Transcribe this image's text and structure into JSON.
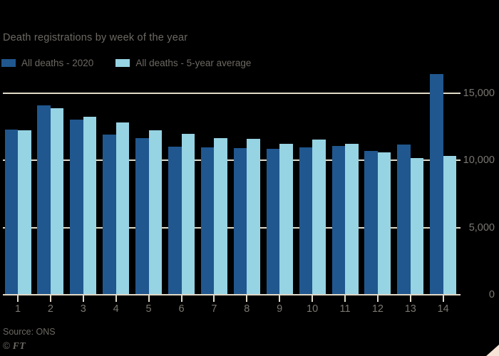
{
  "header": {
    "title": "Death registrations by week of the year"
  },
  "legend": [
    {
      "label": "All deaths - 2020",
      "color": "#20578e"
    },
    {
      "label": "All deaths - 5-year average",
      "color": "#96d3e3"
    }
  ],
  "chart_data": {
    "type": "bar",
    "title": "Death registrations by week of the year",
    "categories": [
      "1",
      "2",
      "3",
      "4",
      "5",
      "6",
      "7",
      "8",
      "9",
      "10",
      "11",
      "12",
      "13",
      "14"
    ],
    "series": [
      {
        "name": "All deaths - 2020",
        "color": "#20578e",
        "values": [
          12254,
          14058,
          12990,
          11856,
          11612,
          10986,
          10944,
          10841,
          10816,
          10895,
          11019,
          10645,
          11141,
          16387
        ]
      },
      {
        "name": "All deaths - 5-year average",
        "color": "#96d3e3",
        "values": [
          12175,
          13822,
          13216,
          12760,
          12206,
          11925,
          11627,
          11548,
          11183,
          11498,
          11205,
          10573,
          10130,
          10305
        ]
      }
    ],
    "xlabel": "",
    "ylabel": "",
    "ylim": [
      0,
      15000
    ],
    "yticks": [
      0,
      5000,
      10000,
      15000
    ],
    "ytick_labels": [
      "0",
      "5,000",
      "10,000",
      "15,000"
    ],
    "y_axis_side": "right",
    "grid": "horizontal, cream, behind bars",
    "legend_position": "top-left"
  },
  "footer": {
    "source": "Source: ONS",
    "copyright_symbol": "©",
    "copyright_brand": "FT"
  },
  "colors": {
    "background": "#000000",
    "bar_2020": "#20578e",
    "bar_5yr_avg": "#96d3e3",
    "gridline": "#e1d9c7",
    "title_text": "#6d6963",
    "axis_text": "#7b7771",
    "corner_triangle": "#f6e3d5"
  }
}
